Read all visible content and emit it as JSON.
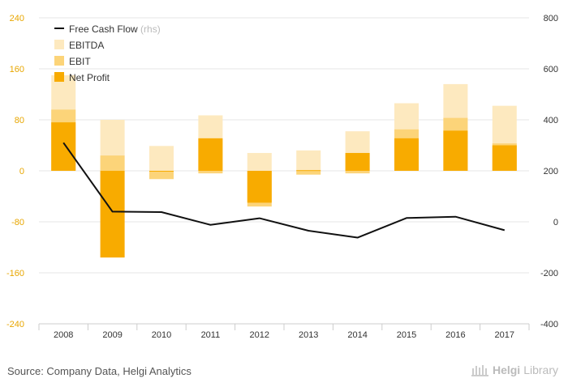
{
  "chart_data": {
    "type": "bar",
    "categories": [
      "2008",
      "2009",
      "2010",
      "2011",
      "2012",
      "2013",
      "2014",
      "2015",
      "2016",
      "2017"
    ],
    "series": [
      {
        "name": "EBITDA",
        "kind": "bar",
        "axis": "left",
        "color": "#fde9bf",
        "values": [
          150,
          80,
          39,
          87,
          28,
          32,
          62,
          106,
          136,
          102
        ]
      },
      {
        "name": "EBIT",
        "kind": "bar",
        "axis": "left",
        "color": "#fcd479",
        "values": [
          96,
          24,
          -13,
          -4,
          -56,
          -6,
          -4,
          65,
          83,
          43
        ]
      },
      {
        "name": "Net Profit",
        "kind": "bar",
        "axis": "left",
        "color": "#f8ab00",
        "values": [
          76,
          -136,
          -1,
          51,
          -50,
          1,
          28,
          51,
          63,
          40
        ]
      },
      {
        "name": "Free Cash Flow",
        "name_suffix": "(rhs)",
        "kind": "line",
        "axis": "right",
        "color": "#111111",
        "values": [
          310,
          40,
          38,
          -12,
          14,
          -35,
          -62,
          15,
          20,
          -33
        ]
      }
    ],
    "left_axis": {
      "ticks": [
        "240",
        "160",
        "80",
        "0",
        "-80",
        "-160",
        "-240"
      ],
      "min": -240,
      "max": 240
    },
    "right_axis": {
      "ticks": [
        "800",
        "600",
        "400",
        "200",
        "0",
        "-200",
        "-400"
      ],
      "min": -400,
      "max": 800
    },
    "grid": true,
    "legend_position": "top-left"
  },
  "footer": {
    "source": "Source: Company Data, Helgi Analytics",
    "brand_bold": "Helgi",
    "brand_light": "Library"
  },
  "colors": {
    "left_tick": "#e8a600",
    "right_tick": "#333333",
    "grid": "#e6e6e6"
  }
}
